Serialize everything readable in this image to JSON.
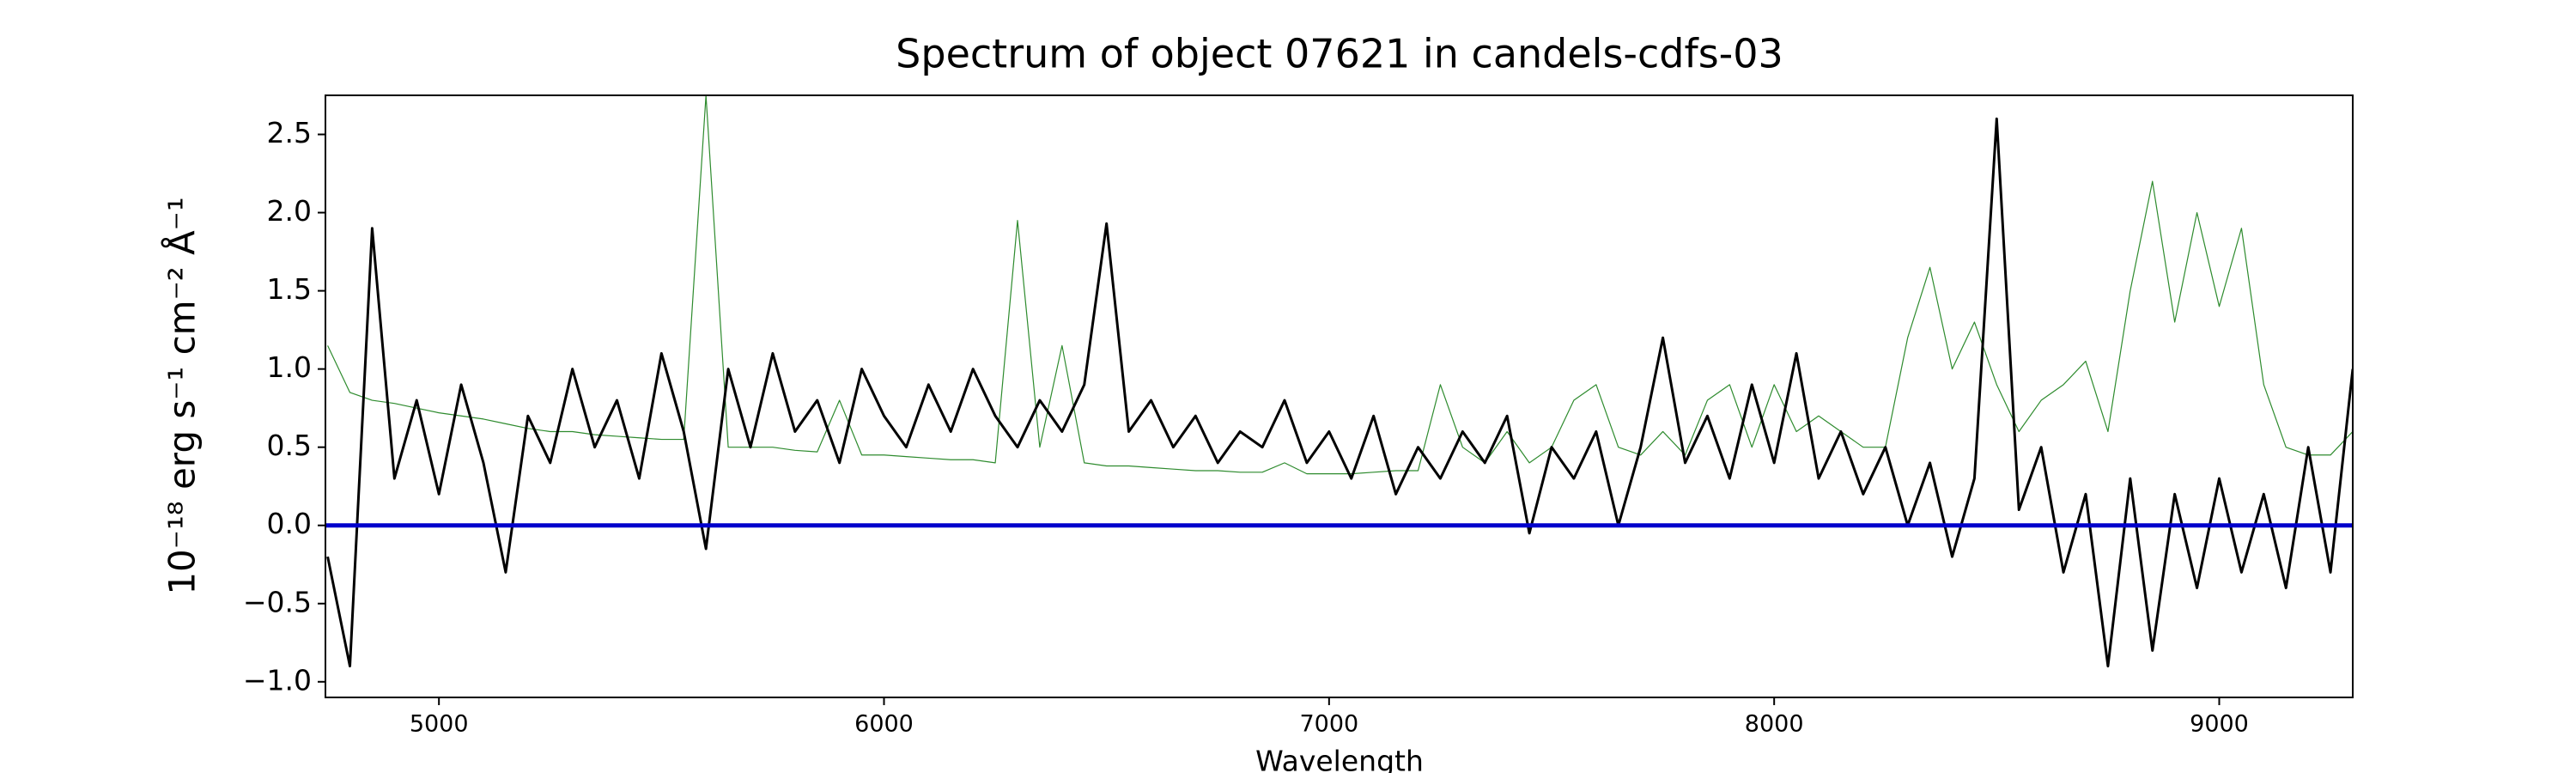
{
  "chart_data": {
    "type": "line",
    "title": "Spectrum of object 07621 in candels-cdfs-03",
    "x_label": "Wavelength",
    "y_label": "10⁻¹⁸ erg s⁻¹ cm⁻² Å⁻¹",
    "x": [
      4750,
      4800,
      4850,
      4900,
      4950,
      5000,
      5050,
      5100,
      5150,
      5200,
      5250,
      5300,
      5350,
      5400,
      5450,
      5500,
      5550,
      5600,
      5650,
      5700,
      5750,
      5800,
      5850,
      5900,
      5950,
      6000,
      6050,
      6100,
      6150,
      6200,
      6250,
      6300,
      6350,
      6400,
      6450,
      6500,
      6550,
      6600,
      6650,
      6700,
      6750,
      6800,
      6850,
      6900,
      6950,
      7000,
      7050,
      7100,
      7150,
      7200,
      7250,
      7300,
      7350,
      7400,
      7450,
      7500,
      7550,
      7600,
      7650,
      7700,
      7750,
      7800,
      7850,
      7900,
      7950,
      8000,
      8050,
      8100,
      8150,
      8200,
      8250,
      8300,
      8350,
      8400,
      8450,
      8500,
      8550,
      8600,
      8650,
      8700,
      8750,
      8800,
      8850,
      8900,
      8950,
      9000,
      9050,
      9100,
      9150,
      9200,
      9250,
      9300
    ],
    "series": [
      {
        "color": "#2e8b2e",
        "linewidth": 1.2,
        "values": [
          1.15,
          0.85,
          0.8,
          0.78,
          0.75,
          0.72,
          0.7,
          0.68,
          0.65,
          0.62,
          0.6,
          0.6,
          0.58,
          0.57,
          0.56,
          0.55,
          0.55,
          2.75,
          0.5,
          0.5,
          0.5,
          0.48,
          0.47,
          0.8,
          0.45,
          0.45,
          0.44,
          0.43,
          0.42,
          0.42,
          0.4,
          1.95,
          0.5,
          1.15,
          0.4,
          0.38,
          0.38,
          0.37,
          0.36,
          0.35,
          0.35,
          0.34,
          0.34,
          0.4,
          0.33,
          0.33,
          0.33,
          0.34,
          0.35,
          0.35,
          0.9,
          0.5,
          0.4,
          0.6,
          0.4,
          0.5,
          0.8,
          0.9,
          0.5,
          0.45,
          0.6,
          0.45,
          0.8,
          0.9,
          0.5,
          0.9,
          0.6,
          0.7,
          0.6,
          0.5,
          0.5,
          1.2,
          1.65,
          1.0,
          1.3,
          0.9,
          0.6,
          0.8,
          0.9,
          1.05,
          0.6,
          1.5,
          2.2,
          1.3,
          2.0,
          1.4,
          1.9,
          0.9,
          0.5,
          0.45,
          0.45,
          0.6
        ]
      },
      {
        "color": "#000000",
        "linewidth": 3,
        "values": [
          -0.2,
          -0.9,
          1.9,
          0.3,
          0.8,
          0.2,
          0.9,
          0.4,
          -0.3,
          0.7,
          0.4,
          1.0,
          0.5,
          0.8,
          0.3,
          1.1,
          0.6,
          -0.15,
          1.0,
          0.5,
          1.1,
          0.6,
          0.8,
          0.4,
          1.0,
          0.7,
          0.5,
          0.9,
          0.6,
          1.0,
          0.7,
          0.5,
          0.8,
          0.6,
          0.9,
          1.93,
          0.6,
          0.8,
          0.5,
          0.7,
          0.4,
          0.6,
          0.5,
          0.8,
          0.4,
          0.6,
          0.3,
          0.7,
          0.2,
          0.5,
          0.3,
          0.6,
          0.4,
          0.7,
          -0.05,
          0.5,
          0.3,
          0.6,
          0.0,
          0.5,
          1.2,
          0.4,
          0.7,
          0.3,
          0.9,
          0.4,
          1.1,
          0.3,
          0.6,
          0.2,
          0.5,
          0.0,
          0.4,
          -0.2,
          0.3,
          2.6,
          0.1,
          0.5,
          -0.3,
          0.2,
          -0.9,
          0.3,
          -0.8,
          0.2,
          -0.4,
          0.3,
          -0.3,
          0.2,
          -0.4,
          0.5,
          -0.3,
          1.0
        ]
      },
      {
        "color": "#0000cc",
        "linewidth": 5,
        "x": [
          4745,
          9300
        ],
        "values": [
          0,
          0
        ]
      }
    ],
    "xlim": [
      4745,
      9300
    ],
    "ylim": [
      -1.1,
      2.75
    ],
    "xticks": [
      5000,
      6000,
      7000,
      8000,
      9000
    ],
    "yticks": [
      {
        "value": -1.0,
        "label": "−1.0"
      },
      {
        "value": -0.5,
        "label": "−0.5"
      },
      {
        "value": 0.0,
        "label": "0.0"
      },
      {
        "value": 0.5,
        "label": "0.5"
      },
      {
        "value": 1.0,
        "label": "1.0"
      },
      {
        "value": 1.5,
        "label": "1.5"
      },
      {
        "value": 2.0,
        "label": "2.0"
      },
      {
        "value": 2.5,
        "label": "2.5"
      }
    ],
    "grid": false
  }
}
